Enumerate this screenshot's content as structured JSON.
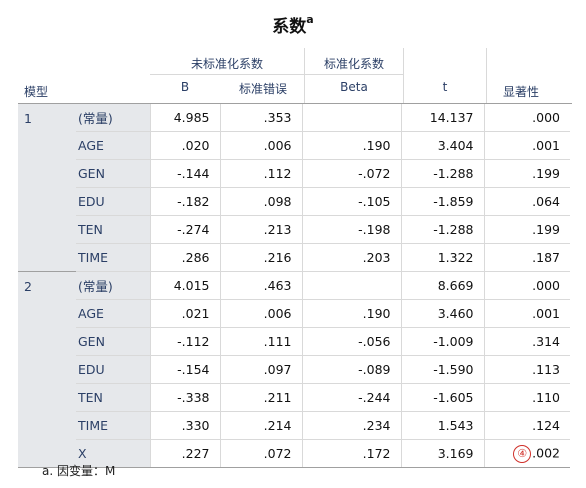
{
  "title": "系数",
  "title_superscript": "a",
  "header": {
    "unstandardized": "未标准化系数",
    "standardized": "标准化系数",
    "model": "模型",
    "b": "B",
    "std_error": "标准错误",
    "beta": "Beta",
    "t": "t",
    "sig": "显著性"
  },
  "rows": [
    {
      "model": "1",
      "var": "(常量)",
      "b": "4.985",
      "se": ".353",
      "beta": "",
      "t": "14.137",
      "sig": ".000"
    },
    {
      "model": "",
      "var": "AGE",
      "b": ".020",
      "se": ".006",
      "beta": ".190",
      "t": "3.404",
      "sig": ".001"
    },
    {
      "model": "",
      "var": "GEN",
      "b": "-.144",
      "se": ".112",
      "beta": "-.072",
      "t": "-1.288",
      "sig": ".199"
    },
    {
      "model": "",
      "var": "EDU",
      "b": "-.182",
      "se": ".098",
      "beta": "-.105",
      "t": "-1.859",
      "sig": ".064"
    },
    {
      "model": "",
      "var": "TEN",
      "b": "-.274",
      "se": ".213",
      "beta": "-.198",
      "t": "-1.288",
      "sig": ".199"
    },
    {
      "model": "",
      "var": "TIME",
      "b": ".286",
      "se": ".216",
      "beta": ".203",
      "t": "1.322",
      "sig": ".187"
    },
    {
      "model": "2",
      "var": "(常量)",
      "b": "4.015",
      "se": ".463",
      "beta": "",
      "t": "8.669",
      "sig": ".000"
    },
    {
      "model": "",
      "var": "AGE",
      "b": ".021",
      "se": ".006",
      "beta": ".190",
      "t": "3.460",
      "sig": ".001"
    },
    {
      "model": "",
      "var": "GEN",
      "b": "-.112",
      "se": ".111",
      "beta": "-.056",
      "t": "-1.009",
      "sig": ".314"
    },
    {
      "model": "",
      "var": "EDU",
      "b": "-.154",
      "se": ".097",
      "beta": "-.089",
      "t": "-1.590",
      "sig": ".113"
    },
    {
      "model": "",
      "var": "TEN",
      "b": "-.338",
      "se": ".211",
      "beta": "-.244",
      "t": "-1.605",
      "sig": ".110"
    },
    {
      "model": "",
      "var": "TIME",
      "b": ".330",
      "se": ".214",
      "beta": ".234",
      "t": "1.543",
      "sig": ".124"
    },
    {
      "model": "",
      "var": "X",
      "b": ".227",
      "se": ".072",
      "beta": ".172",
      "t": "3.169",
      "sig": ".002",
      "marker": "④"
    }
  ],
  "footnote": "a. 因变量：M",
  "colors": {
    "header_text": "#2b3f66",
    "label_bg": "#e6e8eb",
    "marker": "#d0302a"
  }
}
